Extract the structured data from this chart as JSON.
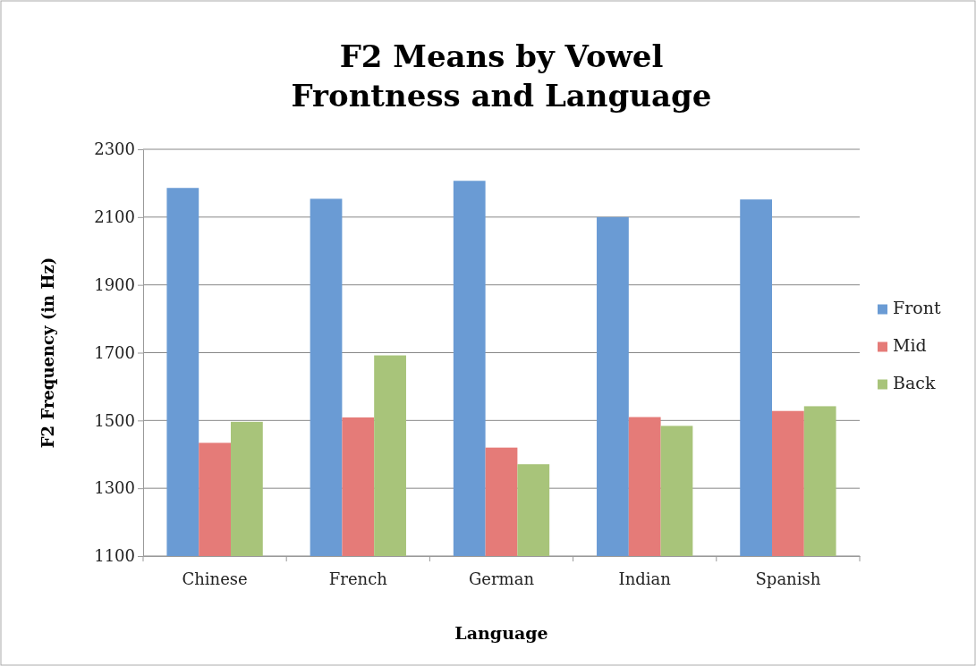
{
  "chart_data": {
    "type": "bar",
    "title": "F2 Means by Vowel Frontness and Language",
    "xlabel": "Language",
    "ylabel": "F2 Frequency (in Hz)",
    "categories": [
      "Chinese",
      "French",
      "German",
      "Indian",
      "Spanish"
    ],
    "series": [
      {
        "name": "Front",
        "color": "#6a9bd4",
        "values": [
          2186,
          2154,
          2207,
          2100,
          2152
        ]
      },
      {
        "name": "Mid",
        "color": "#e57b78",
        "values": [
          1434,
          1509,
          1420,
          1510,
          1528
        ]
      },
      {
        "name": "Back",
        "color": "#a8c47a",
        "values": [
          1496,
          1692,
          1371,
          1484,
          1542
        ]
      }
    ],
    "ylim": [
      1100,
      2300
    ],
    "yticks": [
      1100,
      1300,
      1500,
      1700,
      1900,
      2100,
      2300
    ],
    "grid": "y",
    "legend": "right"
  }
}
